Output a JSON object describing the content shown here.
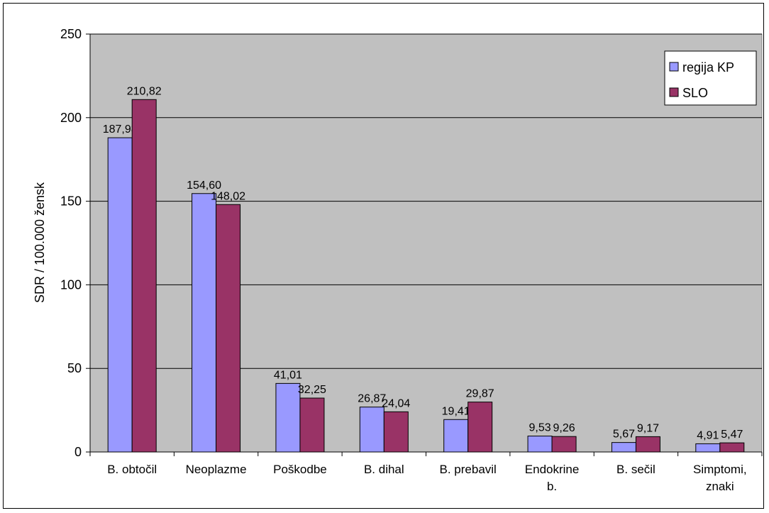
{
  "chart_data": {
    "type": "bar",
    "categories": [
      [
        "B. obtočil"
      ],
      [
        "Neoplazme"
      ],
      [
        "Poškodbe"
      ],
      [
        "B. dihal"
      ],
      [
        "B. prebavil"
      ],
      [
        "Endokrine",
        "b."
      ],
      [
        "B. sečil"
      ],
      [
        "Simptomi,",
        "znaki"
      ]
    ],
    "series": [
      {
        "name": "regija KP",
        "color": "#9999FF",
        "values": [
          187.98,
          154.6,
          41.01,
          26.87,
          19.41,
          9.53,
          5.67,
          4.91
        ],
        "labels": [
          "187,98",
          "154,60",
          "41,01",
          "26,87",
          "19,41",
          "9,53",
          "5,67",
          "4,91"
        ]
      },
      {
        "name": "SLO",
        "color": "#993366",
        "values": [
          210.82,
          148.02,
          32.25,
          24.04,
          29.87,
          9.26,
          9.17,
          5.47
        ],
        "labels": [
          "210,82",
          "148,02",
          "32,25",
          "24,04",
          "29,87",
          "9,26",
          "9,17",
          "5,47"
        ]
      }
    ],
    "ylabel": "SDR / 100.000 žensk",
    "ylim": [
      0,
      250
    ],
    "yticks": [
      0,
      50,
      100,
      150,
      200,
      250
    ],
    "grid": true,
    "plot_background": "#C0C0C0",
    "legend_position": "top-right"
  }
}
